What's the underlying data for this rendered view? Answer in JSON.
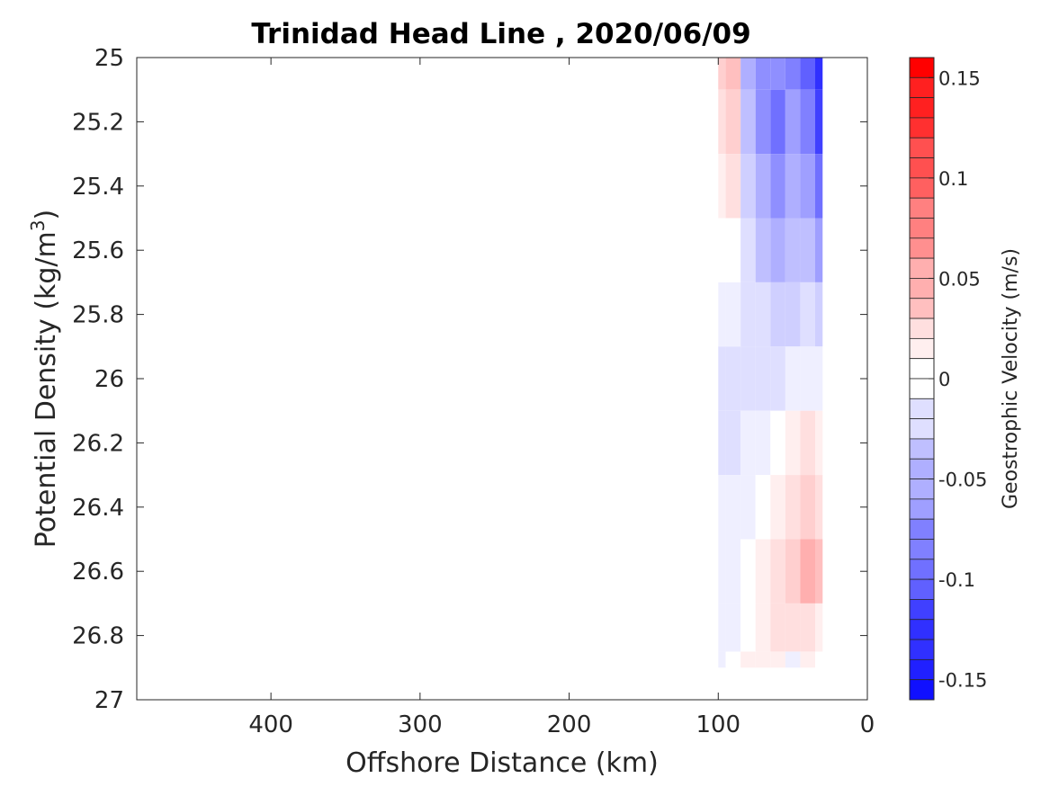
{
  "chart_data": {
    "type": "heatmap",
    "title": "Trinidad Head Line , 2020/06/09",
    "xlabel": "Offshore Distance (km)",
    "ylabel_main": "Potential Density (kg/m",
    "ylabel_sup": "3",
    "ylabel_tail": ")",
    "colorbar_label": "Geostrophic Velocity (m/s)",
    "xlim": [
      490,
      0
    ],
    "x_reversed": true,
    "ylim": [
      25,
      27
    ],
    "y_reversed": true,
    "clim": [
      -0.16,
      0.16
    ],
    "contour_step": 0.01,
    "x_ticks": [
      400,
      300,
      200,
      100,
      0
    ],
    "y_ticks": [
      25,
      25.2,
      25.4,
      25.6,
      25.8,
      26,
      26.2,
      26.4,
      26.6,
      26.8,
      27
    ],
    "y_tick_labels": [
      "25",
      "25.2",
      "25.4",
      "25.6",
      "25.8",
      "26",
      "26.2",
      "26.4",
      "26.6",
      "26.8",
      "27"
    ],
    "colorbar_ticks": [
      0.15,
      0.1,
      0.05,
      0,
      -0.05,
      -0.1,
      -0.15
    ],
    "colorbar_tick_labels": [
      "0.15",
      "0.1",
      "0.05",
      "0",
      "-0.05",
      "-0.1",
      "-0.15"
    ],
    "colormap": {
      "negative": "#0000ff",
      "zero": "#ffffff",
      "positive": "#ff0000"
    },
    "grid": false,
    "x": [
      100,
      90,
      80,
      70,
      60,
      50,
      40,
      30
    ],
    "y": [
      25.0,
      25.2,
      25.4,
      25.6,
      25.8,
      26.0,
      26.2,
      26.4,
      26.6,
      26.8,
      26.9
    ],
    "z": [
      [
        0.03,
        0.04,
        -0.05,
        -0.07,
        -0.07,
        -0.08,
        -0.1,
        -0.13
      ],
      [
        0.02,
        0.03,
        -0.04,
        -0.07,
        -0.09,
        -0.06,
        -0.08,
        -0.12
      ],
      [
        0.01,
        0.02,
        -0.03,
        -0.05,
        -0.07,
        -0.05,
        -0.06,
        -0.09
      ],
      [
        0.0,
        0.0,
        -0.02,
        -0.04,
        -0.05,
        -0.04,
        -0.04,
        -0.06
      ],
      [
        -0.01,
        -0.01,
        -0.02,
        -0.02,
        -0.03,
        -0.03,
        -0.02,
        -0.03
      ],
      [
        -0.02,
        -0.02,
        -0.02,
        -0.02,
        -0.02,
        -0.01,
        -0.01,
        -0.01
      ],
      [
        -0.02,
        -0.02,
        -0.01,
        -0.01,
        0.0,
        0.01,
        0.02,
        0.01
      ],
      [
        -0.01,
        -0.01,
        -0.01,
        0.0,
        0.01,
        0.02,
        0.03,
        0.02
      ],
      [
        -0.01,
        -0.01,
        0.0,
        0.01,
        0.02,
        0.03,
        0.05,
        0.04
      ],
      [
        -0.01,
        -0.01,
        0.0,
        0.01,
        0.02,
        0.02,
        0.02,
        0.01
      ],
      [
        -0.01,
        0.0,
        0.01,
        0.01,
        0.01,
        -0.01,
        0.01,
        0.0
      ]
    ]
  }
}
